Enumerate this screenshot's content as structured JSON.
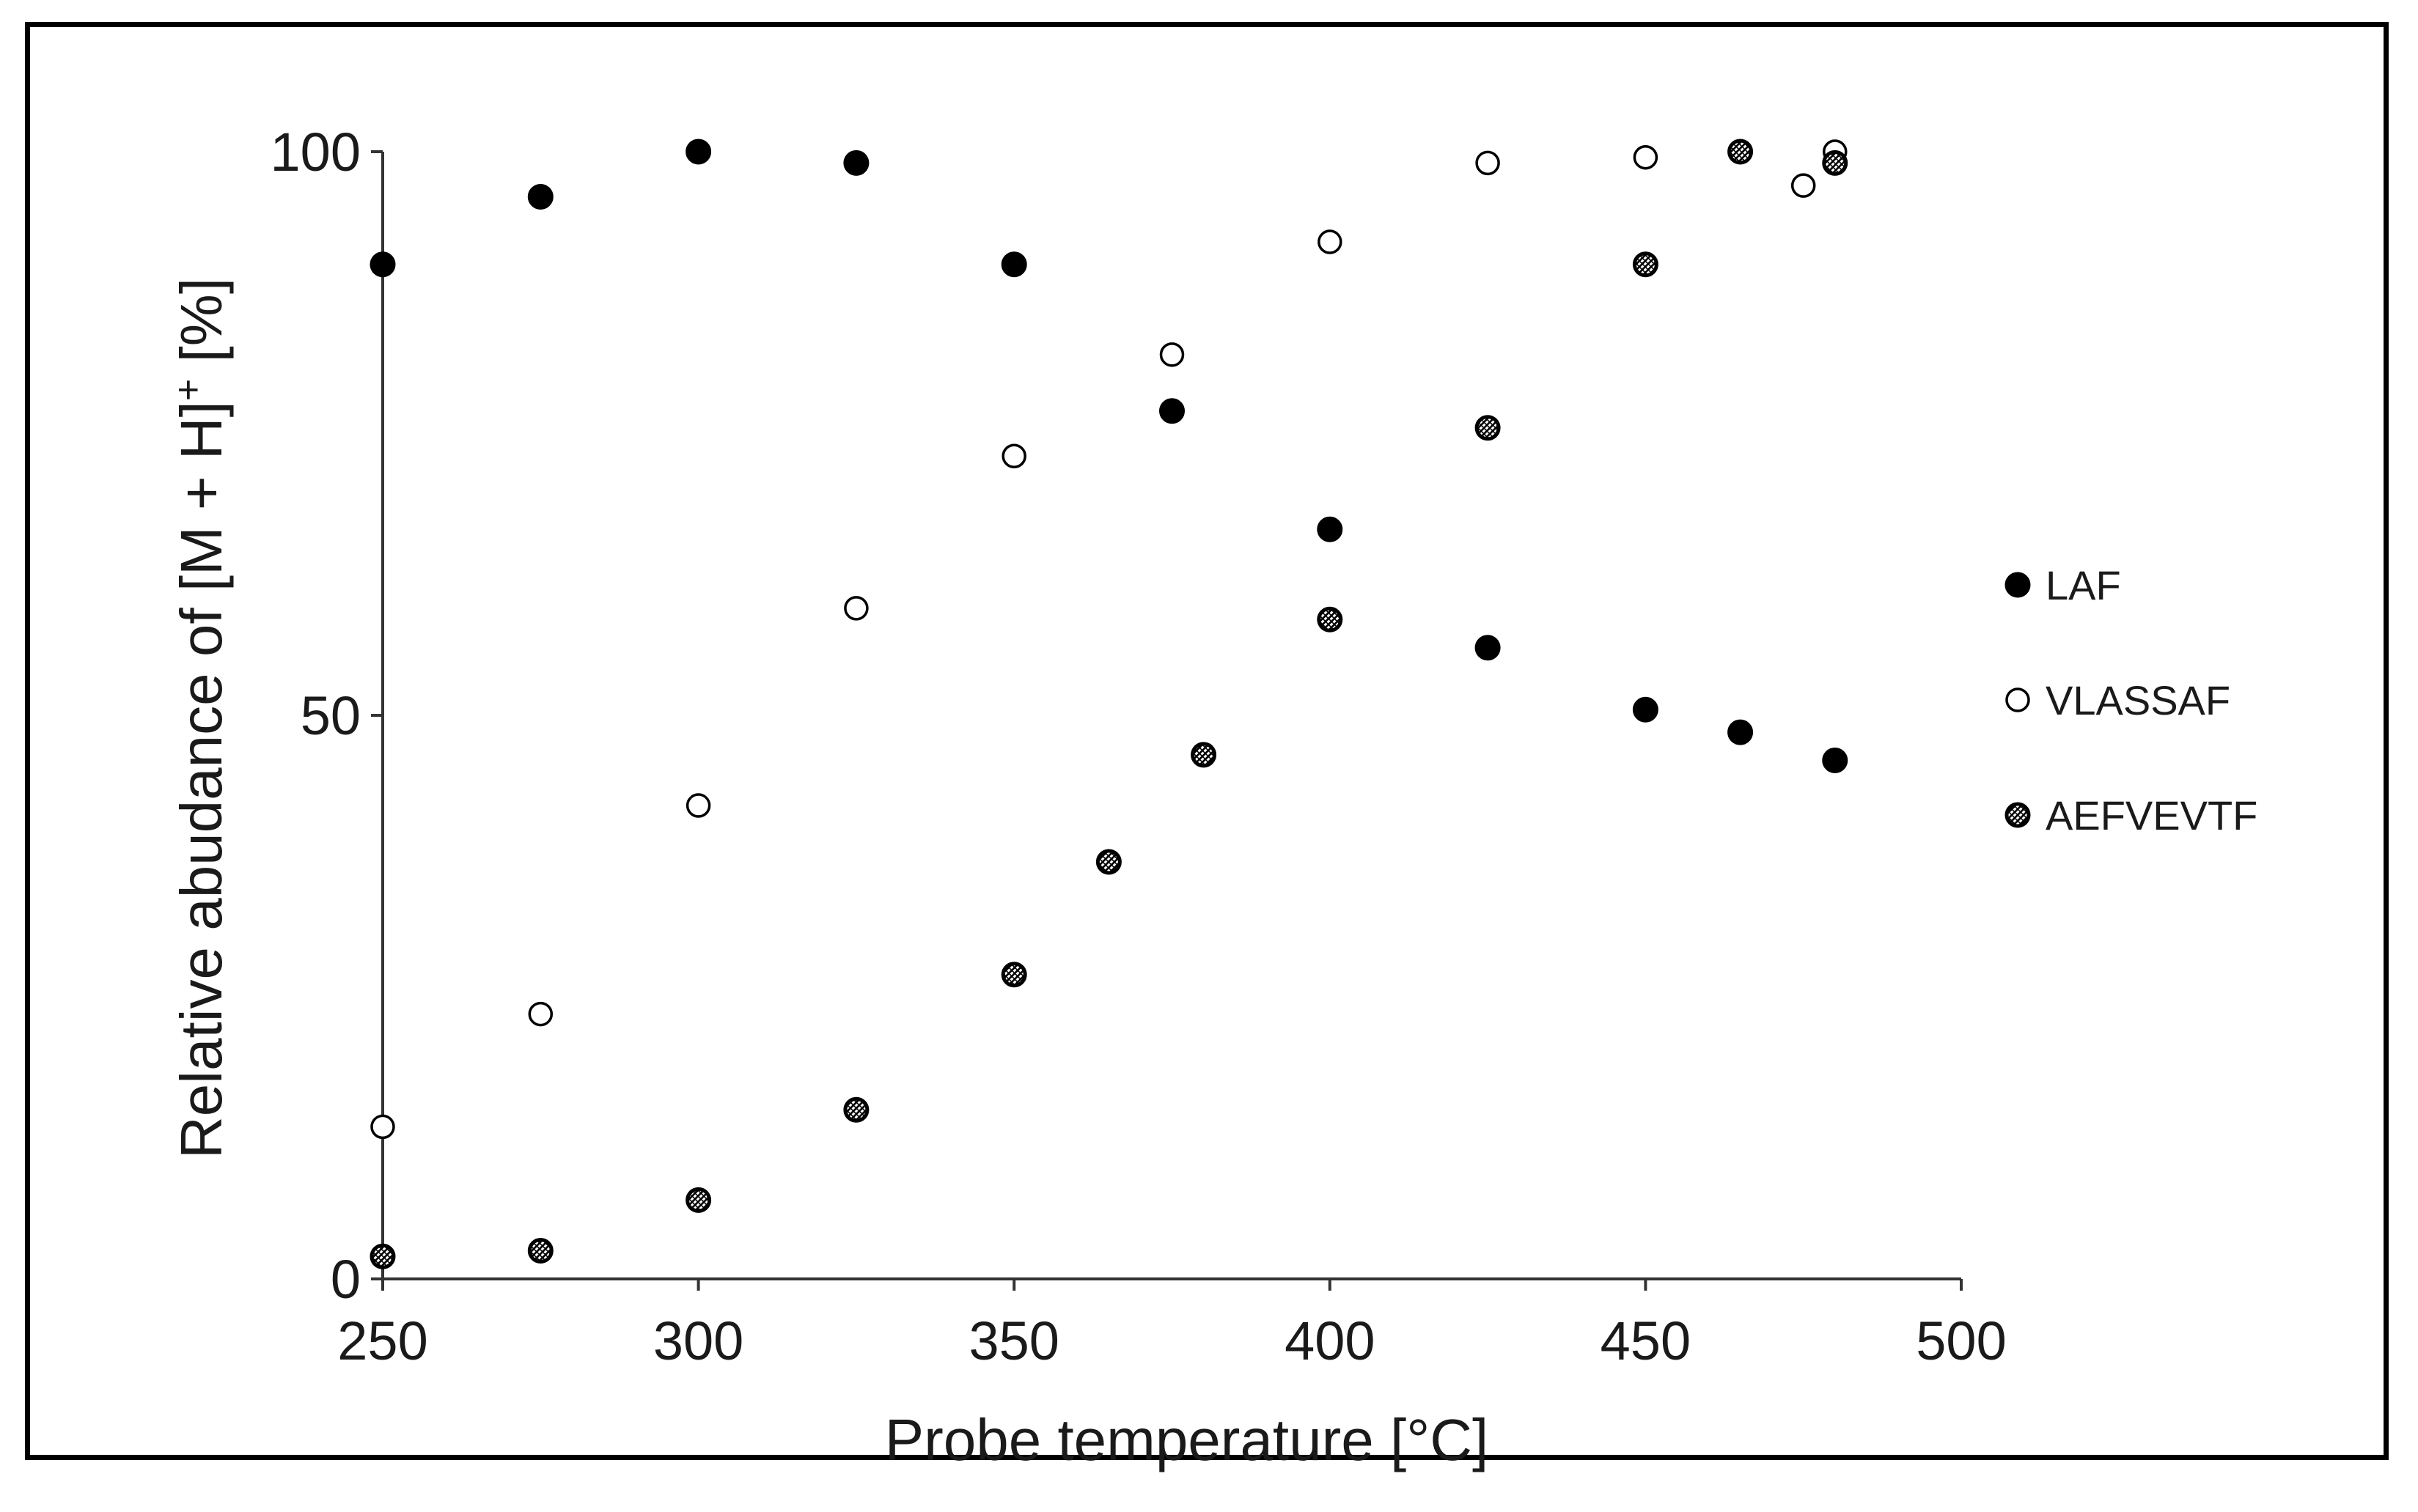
{
  "chart_data": {
    "type": "scatter",
    "title": "",
    "xlabel": "Probe temperature [°C]",
    "ylabel_parts": {
      "base": "Relative abudance of [M + H]",
      "superscript": "+",
      "suffix": " [%]"
    },
    "xlim": [
      250,
      500
    ],
    "ylim": [
      0,
      100
    ],
    "x_ticks": [
      250,
      300,
      350,
      400,
      450,
      500
    ],
    "y_ticks": [
      0,
      50,
      100
    ],
    "x_tick_labels": [
      "250",
      "300",
      "350",
      "400",
      "450",
      "500"
    ],
    "y_tick_labels": [
      "0",
      "50",
      "100"
    ],
    "grid": false,
    "legend_position": "right",
    "series": [
      {
        "name": "LAF",
        "marker": "filled-circle",
        "color": "#000000",
        "points": [
          {
            "x": 250,
            "y": 90
          },
          {
            "x": 275,
            "y": 96
          },
          {
            "x": 300,
            "y": 100
          },
          {
            "x": 325,
            "y": 99
          },
          {
            "x": 350,
            "y": 90
          },
          {
            "x": 375,
            "y": 77
          },
          {
            "x": 400,
            "y": 66.5
          },
          {
            "x": 425,
            "y": 56
          },
          {
            "x": 450,
            "y": 50.5
          },
          {
            "x": 465,
            "y": 48.5
          },
          {
            "x": 480,
            "y": 46
          }
        ]
      },
      {
        "name": "VLASSAF",
        "marker": "open-circle",
        "color": "#000000",
        "points": [
          {
            "x": 250,
            "y": 13.5
          },
          {
            "x": 275,
            "y": 23.5
          },
          {
            "x": 300,
            "y": 42
          },
          {
            "x": 325,
            "y": 59.5
          },
          {
            "x": 350,
            "y": 73
          },
          {
            "x": 375,
            "y": 82
          },
          {
            "x": 400,
            "y": 92
          },
          {
            "x": 425,
            "y": 99
          },
          {
            "x": 450,
            "y": 99.5
          },
          {
            "x": 475,
            "y": 97
          },
          {
            "x": 480,
            "y": 100
          }
        ]
      },
      {
        "name": "AEFVEVTF",
        "marker": "patterned-circle",
        "color": "#1a1a1a",
        "points": [
          {
            "x": 250,
            "y": 2
          },
          {
            "x": 275,
            "y": 2.5
          },
          {
            "x": 300,
            "y": 7
          },
          {
            "x": 325,
            "y": 15
          },
          {
            "x": 350,
            "y": 27
          },
          {
            "x": 365,
            "y": 37
          },
          {
            "x": 380,
            "y": 46.5
          },
          {
            "x": 400,
            "y": 58.5
          },
          {
            "x": 425,
            "y": 75.5
          },
          {
            "x": 450,
            "y": 90
          },
          {
            "x": 465,
            "y": 100
          },
          {
            "x": 480,
            "y": 99
          }
        ]
      }
    ]
  }
}
